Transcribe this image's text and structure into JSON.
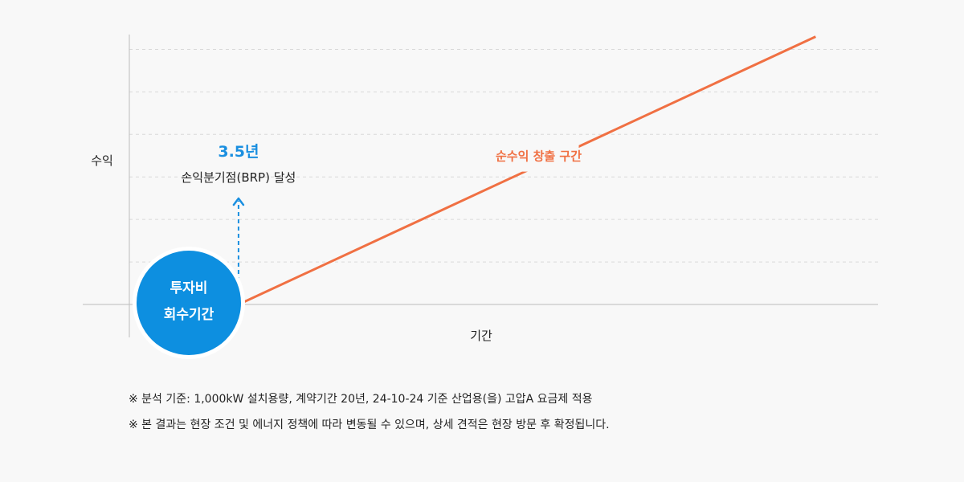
{
  "chart_data": {
    "type": "line",
    "ylabel": "수익",
    "xlabel": "기간",
    "grid": true,
    "gridlines": 6,
    "series": [
      {
        "name": "순수익 창출 구간",
        "color": "#f07043",
        "points": [
          [
            3.5,
            0
          ],
          [
            22,
            6.3
          ]
        ]
      }
    ],
    "xlim": [
      0,
      24
    ],
    "ylim": [
      0,
      6.5
    ],
    "breakeven": {
      "value": "3.5년",
      "label": "손익분기점(BRP) 달성",
      "x": 3.5,
      "color": "#1a8fe0"
    },
    "badge": {
      "line1": "투자비",
      "line2": "회수기간",
      "color": "#0d8fe0"
    }
  },
  "notes": [
    "※ 분석 기준: 1,000kW 설치용량, 계약기간 20년, 24-10-24 기준 산업용(을) 고압A 요금제 적용",
    "※ 본 결과는 현장 조건 및 에너지 정책에 따라 변동될 수 있으며, 상세 견적은 현장 방문 후 확정됩니다."
  ]
}
